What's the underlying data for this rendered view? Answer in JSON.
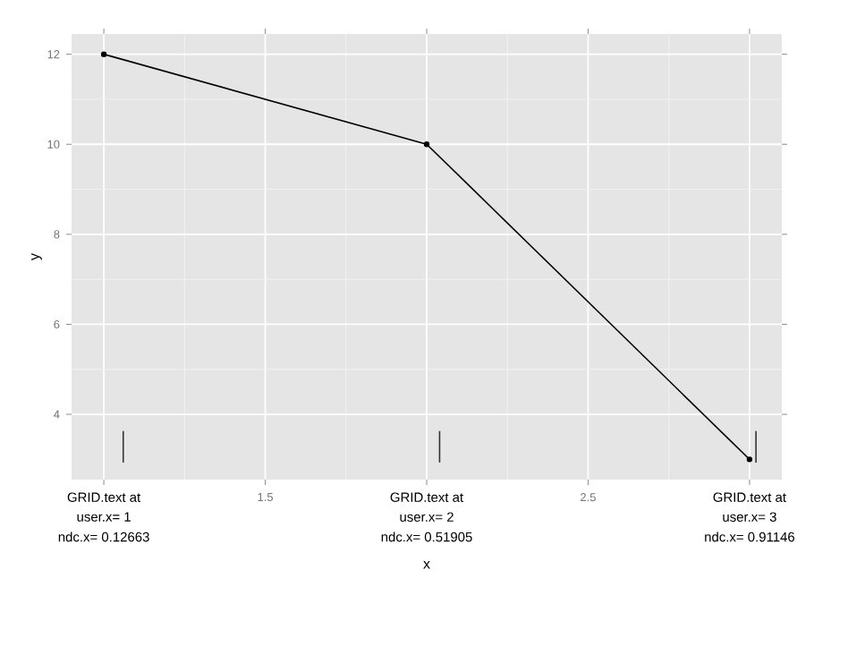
{
  "chart_data": {
    "type": "line",
    "xlabel": "x",
    "ylabel": "y",
    "xlim": [
      0.9,
      3.1
    ],
    "ylim": [
      2.55,
      12.45
    ],
    "xticks": [
      {
        "value": 1,
        "label": null
      },
      1.5,
      {
        "value": 2,
        "label": null
      },
      2.5,
      {
        "value": 3,
        "label": null
      }
    ],
    "yticks": [
      4,
      6,
      8,
      10,
      12
    ],
    "grid": true,
    "marker": "circle",
    "line_style": "solid",
    "series": [
      {
        "color": "#000000",
        "x": [
          1,
          2,
          3
        ],
        "values": [
          12,
          10,
          3
        ]
      },
      {
        "color": "#333333",
        "marker": "none",
        "x": [
          1.06,
          1.06
        ],
        "values": [
          2.93,
          3.63
        ]
      },
      {
        "color": "#333333",
        "marker": "none",
        "x": [
          2.04,
          2.04
        ],
        "values": [
          2.93,
          3.63
        ]
      },
      {
        "color": "#333333",
        "marker": "none",
        "x": [
          3.02,
          3.02
        ],
        "values": [
          2.93,
          3.63
        ]
      }
    ],
    "annotations": [
      "GRID.text at",
      "user.x= 1",
      "ndc.x= 0.12663",
      "GRID.text at",
      "user.x= 2",
      "ndc.x= 0.51905",
      "GRID.text at",
      "user.x= 3",
      "ndc.x= 0.91146"
    ]
  }
}
